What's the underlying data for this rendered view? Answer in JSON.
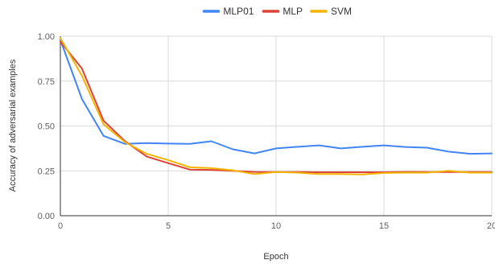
{
  "chart_data": {
    "type": "line",
    "xlabel": "Epoch",
    "ylabel": "Accuracy of adversarial examples",
    "xlim": [
      0,
      20
    ],
    "ylim": [
      0,
      1
    ],
    "grid": true,
    "legend_position": "top-center",
    "x_ticks": [
      "0",
      "5",
      "10",
      "15",
      "20"
    ],
    "y_ticks": [
      "0.00",
      "0.25",
      "0.50",
      "0.75",
      "1.00"
    ],
    "x": [
      0,
      1,
      2,
      3,
      4,
      5,
      6,
      7,
      8,
      9,
      10,
      11,
      12,
      13,
      14,
      15,
      16,
      17,
      18,
      19,
      20
    ],
    "series": [
      {
        "name": "MLP01",
        "color": "#4285f4",
        "values": [
          0.98,
          0.65,
          0.445,
          0.4,
          0.405,
          0.402,
          0.4,
          0.415,
          0.37,
          0.347,
          0.375,
          0.384,
          0.392,
          0.375,
          0.384,
          0.392,
          0.383,
          0.379,
          0.357,
          0.345,
          0.347
        ]
      },
      {
        "name": "MLP",
        "color": "#db4437",
        "values": [
          0.97,
          0.82,
          0.53,
          0.415,
          0.33,
          0.293,
          0.257,
          0.255,
          0.25,
          0.244,
          0.243,
          0.243,
          0.242,
          0.242,
          0.242,
          0.242,
          0.244,
          0.243,
          0.243,
          0.243,
          0.243
        ]
      },
      {
        "name": "SVM",
        "color": "#f4b400",
        "values": [
          0.99,
          0.78,
          0.51,
          0.41,
          0.345,
          0.31,
          0.27,
          0.265,
          0.253,
          0.232,
          0.243,
          0.24,
          0.232,
          0.232,
          0.23,
          0.238,
          0.24,
          0.24,
          0.25,
          0.24,
          0.24
        ]
      }
    ]
  }
}
